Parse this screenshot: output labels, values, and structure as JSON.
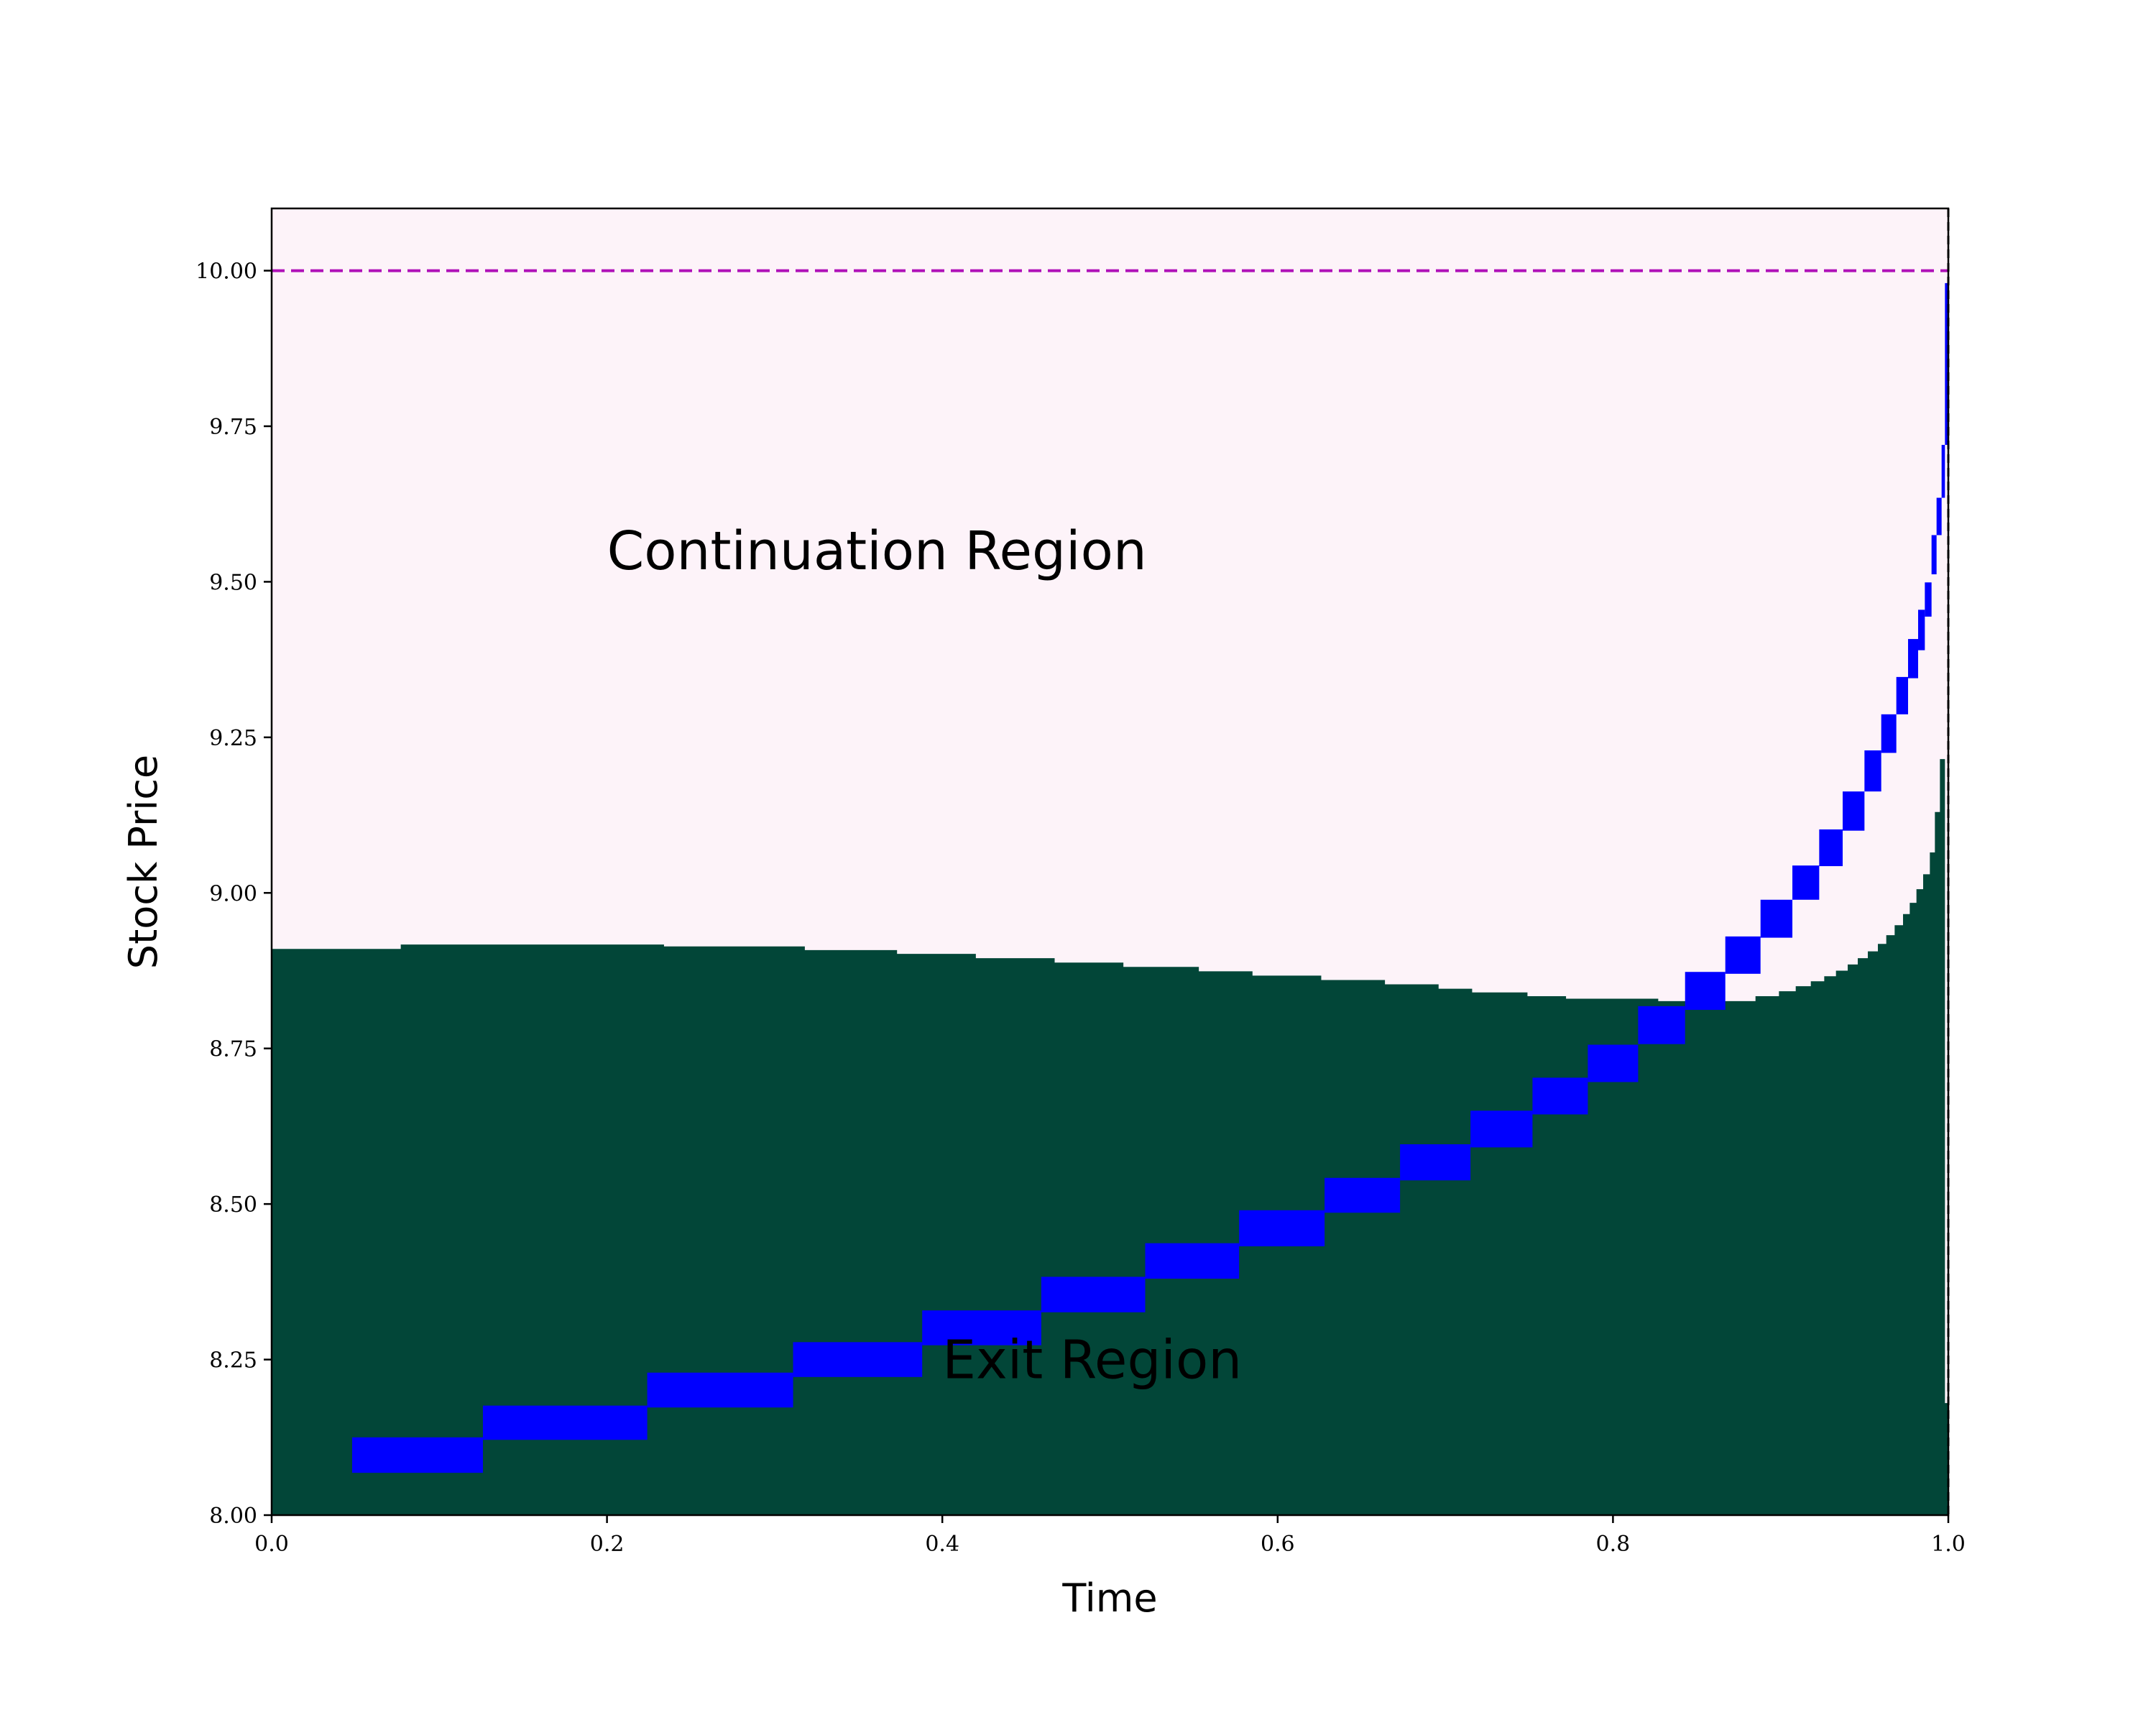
{
  "chart_data": {
    "type": "area",
    "xlabel": "Time",
    "ylabel": "Stock Price",
    "xlim": [
      0.0,
      1.0
    ],
    "ylim": [
      8.0,
      10.1
    ],
    "x_ticks": [
      "0.0",
      "0.2",
      "0.4",
      "0.6",
      "0.8",
      "1.0"
    ],
    "y_ticks": [
      "8.00",
      "8.25",
      "8.50",
      "8.75",
      "9.00",
      "9.25",
      "9.50",
      "9.75",
      "10.00"
    ],
    "annotations": [
      {
        "text": "Continuation Region",
        "x": 0.2,
        "y": 9.52
      },
      {
        "text": "Exit Region",
        "x": 0.4,
        "y": 8.22
      }
    ],
    "colors": {
      "continuation_region": "#fdf3f9",
      "exit_region": "#024638",
      "stepped_band": "#0000ff",
      "strike_line": "#b010b8",
      "maturity_line": "#000000"
    },
    "strike_level": 10.0,
    "maturity_time": 1.0,
    "exercise_boundary": [
      [
        0.0,
        8.91
      ],
      [
        0.077,
        8.917
      ],
      [
        0.234,
        8.914
      ],
      [
        0.318,
        8.908
      ],
      [
        0.373,
        8.902
      ],
      [
        0.42,
        8.895
      ],
      [
        0.467,
        8.888
      ],
      [
        0.508,
        8.881
      ],
      [
        0.553,
        8.874
      ],
      [
        0.585,
        8.867
      ],
      [
        0.626,
        8.86
      ],
      [
        0.664,
        8.853
      ],
      [
        0.696,
        8.846
      ],
      [
        0.716,
        8.84
      ],
      [
        0.749,
        8.834
      ],
      [
        0.772,
        8.83
      ],
      [
        0.827,
        8.826
      ],
      [
        0.861,
        8.826
      ],
      [
        0.885,
        8.834
      ],
      [
        0.899,
        8.842
      ],
      [
        0.909,
        8.85
      ],
      [
        0.918,
        8.858
      ],
      [
        0.926,
        8.866
      ],
      [
        0.933,
        8.875
      ],
      [
        0.94,
        8.885
      ],
      [
        0.946,
        8.895
      ],
      [
        0.952,
        8.906
      ],
      [
        0.958,
        8.918
      ],
      [
        0.963,
        8.932
      ],
      [
        0.968,
        8.948
      ],
      [
        0.973,
        8.966
      ],
      [
        0.977,
        8.984
      ],
      [
        0.981,
        9.006
      ],
      [
        0.985,
        9.03
      ],
      [
        0.989,
        9.065
      ],
      [
        0.992,
        9.13
      ],
      [
        0.995,
        9.215
      ],
      [
        0.998,
        8.18
      ],
      [
        1.0,
        8.18
      ]
    ],
    "stepped_band": [
      [
        0.048,
        0.126,
        8.068,
        8.125
      ],
      [
        0.126,
        0.224,
        8.121,
        8.176
      ],
      [
        0.224,
        0.311,
        8.173,
        8.229
      ],
      [
        0.311,
        0.388,
        8.222,
        8.278
      ],
      [
        0.388,
        0.459,
        8.273,
        8.329
      ],
      [
        0.459,
        0.521,
        8.326,
        8.383
      ],
      [
        0.521,
        0.577,
        8.38,
        8.437
      ],
      [
        0.577,
        0.628,
        8.432,
        8.49
      ],
      [
        0.628,
        0.673,
        8.486,
        8.542
      ],
      [
        0.673,
        0.715,
        8.538,
        8.596
      ],
      [
        0.715,
        0.752,
        8.591,
        8.65
      ],
      [
        0.752,
        0.785,
        8.644,
        8.703
      ],
      [
        0.785,
        0.815,
        8.696,
        8.756
      ],
      [
        0.815,
        0.843,
        8.757,
        8.818
      ],
      [
        0.843,
        0.867,
        8.812,
        8.873
      ],
      [
        0.867,
        0.888,
        8.87,
        8.93
      ],
      [
        0.888,
        0.907,
        8.928,
        8.989
      ],
      [
        0.907,
        0.923,
        8.989,
        9.044
      ],
      [
        0.923,
        0.937,
        9.043,
        9.102
      ],
      [
        0.937,
        0.95,
        9.1,
        9.163
      ],
      [
        0.95,
        0.96,
        9.163,
        9.229
      ],
      [
        0.96,
        0.969,
        9.225,
        9.287
      ],
      [
        0.969,
        0.976,
        9.287,
        9.347
      ],
      [
        0.976,
        0.982,
        9.345,
        9.408
      ],
      [
        0.982,
        0.986,
        9.39,
        9.455
      ],
      [
        0.986,
        0.99,
        9.444,
        9.499
      ],
      [
        0.99,
        0.993,
        9.512,
        9.575
      ],
      [
        0.993,
        0.996,
        9.575,
        9.635
      ],
      [
        0.996,
        0.998,
        9.635,
        9.72
      ],
      [
        0.998,
        1.0,
        9.72,
        9.98
      ]
    ]
  }
}
